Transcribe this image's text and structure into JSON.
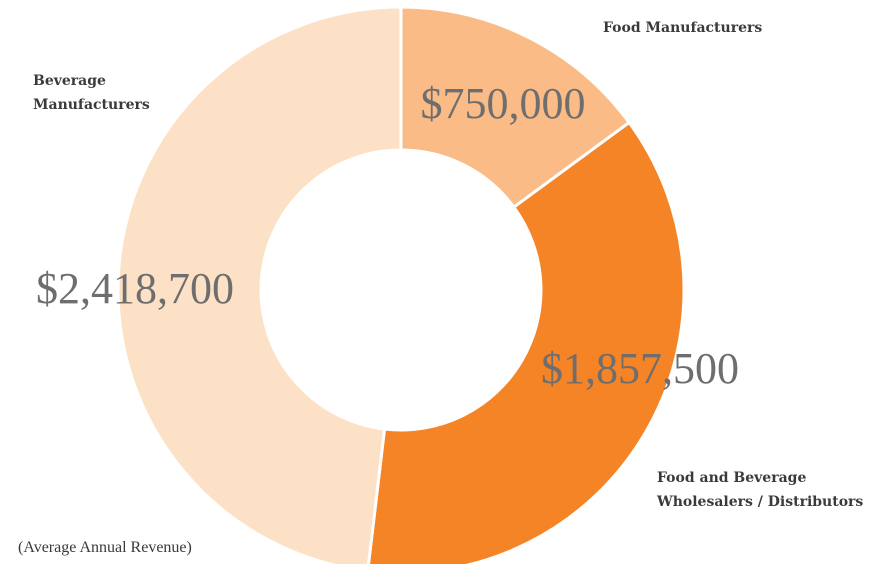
{
  "chart_data": {
    "type": "donut",
    "categories": [
      "Food Manufacturers",
      "Food and Beverage Wholesalers / Distributors",
      "Beverage Manufacturers"
    ],
    "values": [
      750000,
      1857500,
      2418700
    ],
    "value_labels": [
      "$750,000",
      "$1,857,500",
      "$2,418,700"
    ],
    "colors": [
      "#fbbb86",
      "#f58426",
      "#fde1c6"
    ],
    "annotation": "(Average Annual Revenue)"
  }
}
